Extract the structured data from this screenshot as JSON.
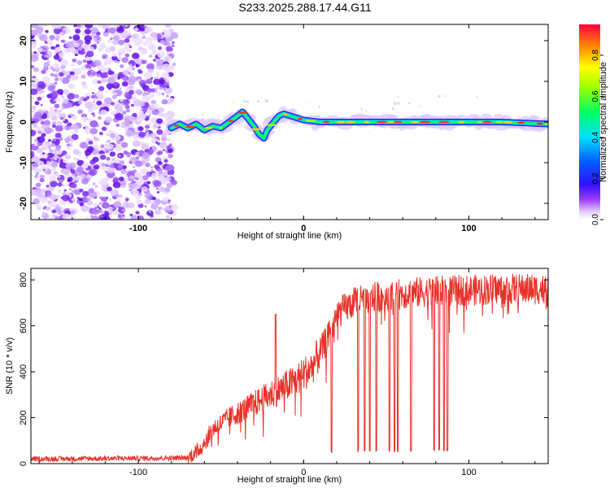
{
  "figure_title": "S233.2025.288.17.44.G11",
  "colors": {
    "snr_line": "#e8322a",
    "spectrogram_noise": "#9955ee",
    "axis": "#000000"
  },
  "chart_data": [
    {
      "type": "heatmap",
      "title": "S233.2025.288.17.44.G11",
      "xlabel": "Height of straight line (km)",
      "ylabel": "Frequency (Hz)",
      "xlim": [
        -165,
        148
      ],
      "ylim": [
        -24,
        24
      ],
      "xticks": [
        -100,
        0,
        100
      ],
      "xtick_labels": [
        "-100",
        "0",
        "100"
      ],
      "yticks": [
        -20,
        -10,
        0,
        10,
        20
      ],
      "ytick_labels": [
        "-20",
        "-10",
        "0",
        "10",
        "20"
      ],
      "colorbar": {
        "label": "Normalized spectral amplitude",
        "range": [
          0,
          0.95
        ],
        "ticks": [
          0.0,
          0.2,
          0.4,
          0.6,
          0.8
        ],
        "tick_labels": [
          "0.0",
          "0.2",
          "0.4",
          "0.6",
          "0.8"
        ]
      },
      "noise_region_x": [
        -165,
        -80
      ],
      "signal_trace": {
        "x": [
          -80,
          -75,
          -70,
          -65,
          -60,
          -55,
          -50,
          -45,
          -40,
          -37,
          -33,
          -30,
          -27,
          -24,
          -22,
          -18,
          -15,
          -12,
          -8,
          -4,
          0,
          10,
          30,
          60,
          90,
          120,
          148
        ],
        "frequency": [
          -1.5,
          -0.5,
          -1.5,
          -0.5,
          -2,
          -1,
          -1.5,
          0,
          1.5,
          2.5,
          0.5,
          -1,
          -3,
          -4,
          -2,
          0,
          1.5,
          2,
          1.5,
          1,
          0.5,
          0,
          0,
          0,
          0,
          0,
          -0.5
        ]
      }
    },
    {
      "type": "line",
      "xlabel": "Height of straight line (km)",
      "ylabel": "SNR (10 * v/v)",
      "xlim": [
        -165,
        148
      ],
      "ylim": [
        0,
        850
      ],
      "xticks": [
        -100,
        0,
        100
      ],
      "xtick_labels": [
        "-100",
        "0",
        "100"
      ],
      "yticks": [
        0,
        200,
        400,
        600,
        800
      ],
      "ytick_labels": [
        "0",
        "200",
        "400",
        "600",
        "800"
      ],
      "trend_x": [
        -165,
        -70,
        -62,
        -55,
        -45,
        -35,
        -25,
        -15,
        -5,
        5,
        15,
        20,
        30,
        40,
        60,
        80,
        100,
        120,
        148
      ],
      "trend_snr": [
        20,
        25,
        70,
        150,
        200,
        240,
        280,
        320,
        360,
        420,
        550,
        650,
        700,
        720,
        740,
        750,
        755,
        760,
        760
      ],
      "dropouts": [
        {
          "x": 17,
          "snr": 45
        },
        {
          "x": 33,
          "snr": 50
        },
        {
          "x": 37,
          "snr": 50
        },
        {
          "x": 40,
          "snr": 50
        },
        {
          "x": 44,
          "snr": 50
        },
        {
          "x": 52,
          "snr": 50
        },
        {
          "x": 55,
          "snr": 50
        },
        {
          "x": 57,
          "snr": 50
        },
        {
          "x": 65,
          "snr": 50
        },
        {
          "x": 79,
          "snr": 55
        },
        {
          "x": 82,
          "snr": 55
        },
        {
          "x": 85,
          "snr": 55
        },
        {
          "x": 87,
          "snr": 55
        }
      ]
    }
  ]
}
